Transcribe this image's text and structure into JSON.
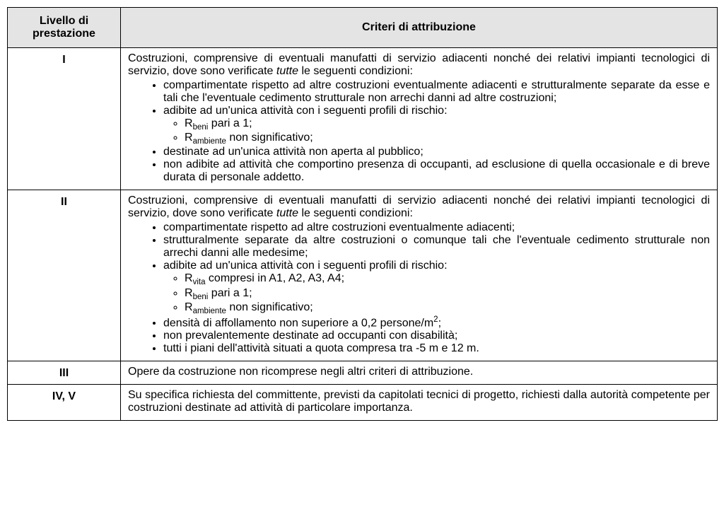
{
  "table": {
    "headers": {
      "level": "Livello di prestazione",
      "criteria": "Criteri di attribuzione"
    },
    "rows": [
      {
        "level": "I",
        "intro_parts": {
          "before": "Costruzioni, comprensive di eventuali manufatti di servizio adiacenti nonché dei relativi impianti tecnologici di servizio, dove sono verificate ",
          "em": "tutte",
          "after": " le seguenti condizioni:"
        },
        "bullets": [
          {
            "text": "compartimentate rispetto ad altre costruzioni eventualmente adiacenti e strutturalmente separate da esse e tali che l'eventuale cedimento strutturale non arrechi danni ad altre costruzioni;"
          },
          {
            "text": "adibite ad un'unica attività con i seguenti profili di rischio:",
            "sub": [
              {
                "pre": "R",
                "sub": "beni",
                "post": " pari a 1;"
              },
              {
                "pre": "R",
                "sub": "ambiente",
                "post": " non significativo;"
              }
            ]
          },
          {
            "text": "destinate ad un'unica attività non aperta al pubblico;"
          },
          {
            "text": "non adibite ad attività che comportino presenza di occupanti, ad esclusione di quella occasionale e di breve durata di personale addetto."
          }
        ]
      },
      {
        "level": "II",
        "intro_parts": {
          "before": "Costruzioni, comprensive di eventuali manufatti di servizio adiacenti nonché dei relativi impianti tecnologici di servizio, dove sono verificate ",
          "em": "tutte",
          "after": " le seguenti condizioni:"
        },
        "bullets": [
          {
            "text": "compartimentate rispetto ad altre costruzioni eventualmente adiacenti;"
          },
          {
            "text": "strutturalmente separate da altre costruzioni o comunque tali che l'eventuale cedimento strutturale non arrechi danni alle medesime;"
          },
          {
            "text": "adibite ad un'unica attività con i seguenti profili di rischio:",
            "sub": [
              {
                "pre": "R",
                "sub": "vita",
                "post": " compresi in A1, A2, A3, A4;"
              },
              {
                "pre": "R",
                "sub": "beni",
                "post": " pari a 1;"
              },
              {
                "pre": "R",
                "sub": "ambiente",
                "post": " non significativo;"
              }
            ]
          },
          {
            "text_html": "densità di affollamento non superiore a 0,2 persone/m<span class=\"sup\">2</span>;"
          },
          {
            "text": "non prevalentemente destinate ad occupanti con disabilità;"
          },
          {
            "text": "tutti i piani dell'attività situati a quota compresa tra -5 m e 12 m."
          }
        ]
      },
      {
        "level": "III",
        "plain": "Opere da costruzione non ricomprese negli altri criteri di attribuzione."
      },
      {
        "level": "IV, V",
        "plain": "Su specifica richiesta del committente, previsti da capitolati tecnici di progetto, richiesti dalla autorità competente per costruzioni destinate ad attività di particolare importanza."
      }
    ]
  }
}
